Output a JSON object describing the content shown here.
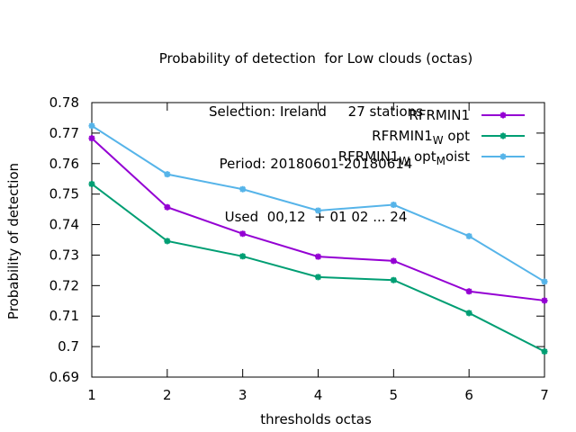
{
  "chart_data": {
    "type": "line",
    "title_lines": [
      "Probability of detection  for Low clouds (octas)",
      "Selection: Ireland     27 stations",
      "Period: 20180601-20180614",
      "Used  00,12  + 01 02 ... 24"
    ],
    "xlabel": "thresholds octas",
    "ylabel": "Probability of detection",
    "x": [
      1,
      2,
      3,
      4,
      5,
      6,
      7
    ],
    "xlim": [
      1,
      7
    ],
    "ylim": [
      0.69,
      0.78
    ],
    "yticks": [
      0.69,
      0.7,
      0.71,
      0.72,
      0.73,
      0.74,
      0.75,
      0.76,
      0.77,
      0.78
    ],
    "ytick_labels": [
      "0.69",
      "0.7",
      "0.71",
      "0.72",
      "0.73",
      "0.74",
      "0.75",
      "0.76",
      "0.77",
      "0.78"
    ],
    "xticks": [
      1,
      2,
      3,
      4,
      5,
      6,
      7
    ],
    "xtick_labels": [
      "1",
      "2",
      "3",
      "4",
      "5",
      "6",
      "7"
    ],
    "grid": false,
    "legend_position": "top-right",
    "series": [
      {
        "name": "RFRMIN1",
        "label_parts": [
          [
            "RFRMIN1",
            "base"
          ]
        ],
        "color": "#9400d3",
        "values": [
          0.7683,
          0.7457,
          0.737,
          0.7295,
          0.7281,
          0.7181,
          0.7151
        ]
      },
      {
        "name": "RFRMIN1_W opt",
        "label_parts": [
          [
            "RFRMIN1",
            "base"
          ],
          [
            "W",
            "sub"
          ],
          [
            " opt",
            "base"
          ]
        ],
        "color": "#009e73",
        "values": [
          0.7533,
          0.7346,
          0.7296,
          0.7228,
          0.7218,
          0.711,
          0.6984
        ]
      },
      {
        "name": "RFRMIN1_W opt_M oist",
        "label_parts": [
          [
            "RFRMIN1",
            "base"
          ],
          [
            "W",
            "sub"
          ],
          [
            " opt",
            "base"
          ],
          [
            "M",
            "sub"
          ],
          [
            "oist",
            "base"
          ]
        ],
        "color": "#56b4e9",
        "values": [
          0.7724,
          0.7565,
          0.7516,
          0.7446,
          0.7465,
          0.7362,
          0.7213
        ]
      }
    ]
  }
}
